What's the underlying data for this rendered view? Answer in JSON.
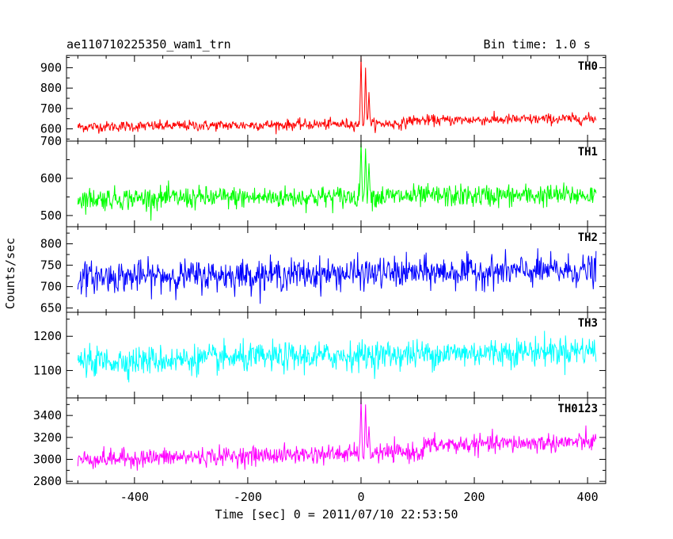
{
  "chart_data": {
    "type": "line",
    "title_left": "ae110710225350_wam1_trn",
    "title_right": "Bin time: 1.0 s",
    "xlabel": "Time [sec] 0 = 2011/07/10 22:53:50",
    "ylabel": "Counts/sec",
    "x_range": [
      -520,
      432
    ],
    "x_data_range": [
      -500,
      415
    ],
    "x_ticks": [
      -400,
      -200,
      0,
      200,
      400
    ],
    "panels": [
      {
        "name": "TH0",
        "color": "#ff0000",
        "ylim": [
          540,
          960
        ],
        "yticks": [
          600,
          700,
          800,
          900
        ],
        "baseline_start": 610,
        "baseline_end": 635,
        "noise": 22,
        "burst": [
          {
            "x": 0,
            "peak": 960
          },
          {
            "x": 8,
            "peak": 900
          },
          {
            "x": 14,
            "peak": 780
          }
        ],
        "step": {
          "x": 80,
          "delta": 15
        }
      },
      {
        "name": "TH1",
        "color": "#00ff00",
        "ylim": [
          470,
          700
        ],
        "yticks": [
          500,
          600,
          700
        ],
        "baseline_start": 545,
        "baseline_end": 555,
        "noise": 25,
        "burst": [
          {
            "x": 0,
            "peak": 700
          },
          {
            "x": 8,
            "peak": 680
          },
          {
            "x": 14,
            "peak": 640
          }
        ],
        "step": {
          "x": 80,
          "delta": 0
        }
      },
      {
        "name": "TH2",
        "color": "#0000ff",
        "ylim": [
          640,
          840
        ],
        "yticks": [
          650,
          700,
          750,
          800
        ],
        "baseline_start": 722,
        "baseline_end": 738,
        "noise": 30,
        "burst": [],
        "step": {
          "x": 80,
          "delta": 0
        }
      },
      {
        "name": "TH3",
        "color": "#00ffff",
        "ylim": [
          1020,
          1270
        ],
        "yticks": [
          1100,
          1200
        ],
        "baseline_start": 1125,
        "baseline_end": 1160,
        "noise": 35,
        "burst": [],
        "step": {
          "x": 80,
          "delta": 0
        }
      },
      {
        "name": "TH0123",
        "color": "#ff00ff",
        "ylim": [
          2780,
          3560
        ],
        "yticks": [
          2800,
          3000,
          3200,
          3400
        ],
        "baseline_start": 3000,
        "baseline_end": 3100,
        "noise": 70,
        "burst": [
          {
            "x": 0,
            "peak": 3560
          },
          {
            "x": 8,
            "peak": 3500
          },
          {
            "x": 14,
            "peak": 3300
          }
        ],
        "step": {
          "x": 110,
          "delta": 60
        }
      }
    ]
  }
}
